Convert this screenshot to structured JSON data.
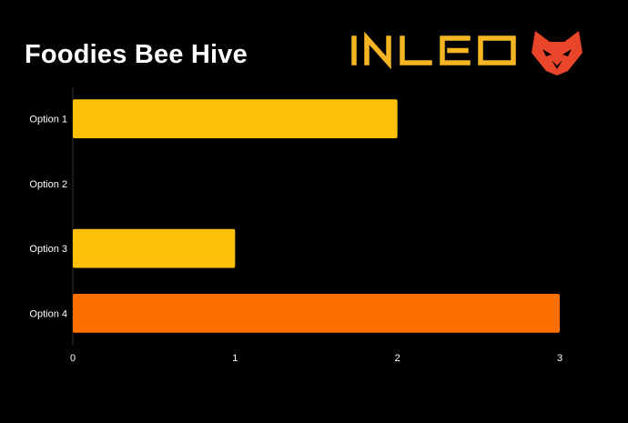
{
  "title": "Foodies Bee Hive",
  "logo": {
    "text": "INLEO",
    "text_color": "#F6B624",
    "icon": "lion-head-icon",
    "icon_color": "#E8452B"
  },
  "chart_data": {
    "type": "bar",
    "orientation": "horizontal",
    "categories": [
      "Option 1",
      "Option 2",
      "Option 3",
      "Option 4"
    ],
    "values": [
      2,
      0,
      1,
      3
    ],
    "colors": [
      "#FFC107",
      "#FFC107",
      "#FFC107",
      "#FF6F00"
    ],
    "xlim": [
      0,
      3
    ],
    "xticks": [
      0,
      1,
      2,
      3
    ],
    "grid": false,
    "legend": "none",
    "title": "Foodies Bee Hive"
  }
}
